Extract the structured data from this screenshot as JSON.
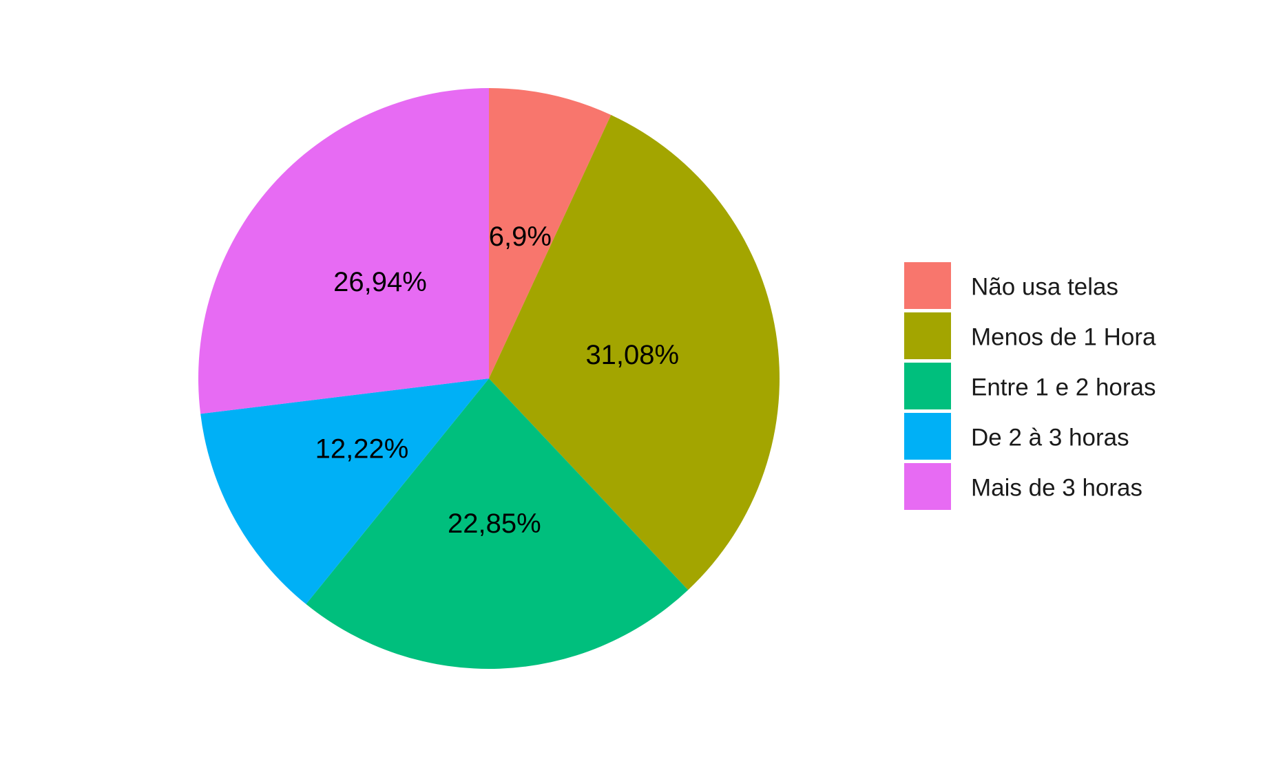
{
  "chart_data": {
    "type": "pie",
    "title": "",
    "categories": [
      "Não usa telas",
      " Menos de 1 Hora",
      "Entre 1 e 2 horas",
      "De 2 à 3 horas",
      "Mais de 3 horas"
    ],
    "values": [
      6.9,
      31.08,
      22.85,
      12.22,
      26.94
    ],
    "labels": [
      "6,9%",
      "31,08%",
      "22,85%",
      "12,22%",
      "26,94%"
    ],
    "colors": [
      "#F8766D",
      "#A3A500",
      "#00BF7D",
      "#00B0F6",
      "#E76BF3"
    ],
    "start_angle": "12 o'clock",
    "direction": "clockwise",
    "legend_position": "right"
  }
}
